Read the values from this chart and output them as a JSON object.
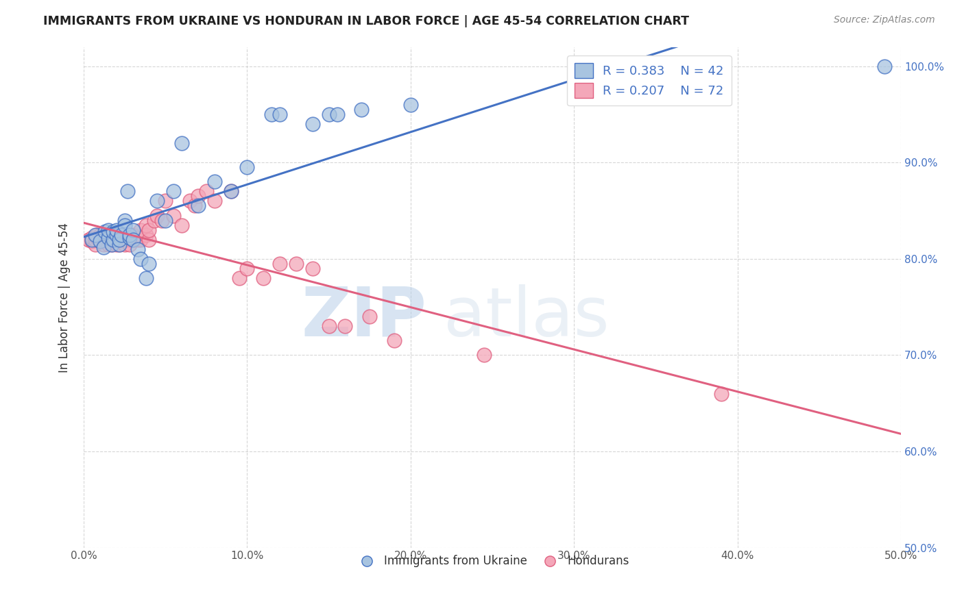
{
  "title": "IMMIGRANTS FROM UKRAINE VS HONDURAN IN LABOR FORCE | AGE 45-54 CORRELATION CHART",
  "source": "Source: ZipAtlas.com",
  "ylabel": "In Labor Force | Age 45-54",
  "xlim": [
    0.0,
    0.5
  ],
  "ylim": [
    0.5,
    1.02
  ],
  "xticks": [
    0.0,
    0.1,
    0.2,
    0.3,
    0.4,
    0.5
  ],
  "xticklabels": [
    "0.0%",
    "10.0%",
    "20.0%",
    "30.0%",
    "40.0%",
    "50.0%"
  ],
  "yticks": [
    0.5,
    0.6,
    0.7,
    0.8,
    0.9,
    1.0
  ],
  "yticklabels": [
    "50.0%",
    "60.0%",
    "70.0%",
    "80.0%",
    "90.0%",
    "100.0%"
  ],
  "blue_R": 0.383,
  "blue_N": 42,
  "pink_R": 0.207,
  "pink_N": 72,
  "blue_color": "#a8c4e0",
  "pink_color": "#f4a7b9",
  "blue_line_color": "#4472c4",
  "pink_line_color": "#e06080",
  "legend_text_color": "#4472c4",
  "watermark_zip": "ZIP",
  "watermark_atlas": "atlas",
  "blue_x": [
    0.005,
    0.007,
    0.01,
    0.012,
    0.013,
    0.015,
    0.015,
    0.017,
    0.018,
    0.018,
    0.02,
    0.02,
    0.022,
    0.022,
    0.023,
    0.025,
    0.025,
    0.027,
    0.028,
    0.028,
    0.03,
    0.03,
    0.033,
    0.035,
    0.038,
    0.04,
    0.045,
    0.05,
    0.055,
    0.06,
    0.07,
    0.08,
    0.09,
    0.1,
    0.115,
    0.12,
    0.14,
    0.15,
    0.155,
    0.17,
    0.2,
    0.49
  ],
  "blue_y": [
    0.82,
    0.825,
    0.818,
    0.812,
    0.828,
    0.822,
    0.83,
    0.815,
    0.82,
    0.828,
    0.825,
    0.83,
    0.815,
    0.82,
    0.825,
    0.84,
    0.835,
    0.87,
    0.822,
    0.825,
    0.83,
    0.82,
    0.81,
    0.8,
    0.78,
    0.795,
    0.86,
    0.84,
    0.87,
    0.92,
    0.855,
    0.88,
    0.87,
    0.895,
    0.95,
    0.95,
    0.94,
    0.95,
    0.95,
    0.955,
    0.96,
    1.0
  ],
  "pink_x": [
    0.003,
    0.005,
    0.005,
    0.007,
    0.007,
    0.008,
    0.008,
    0.01,
    0.01,
    0.01,
    0.012,
    0.012,
    0.013,
    0.013,
    0.015,
    0.015,
    0.015,
    0.015,
    0.017,
    0.017,
    0.018,
    0.018,
    0.018,
    0.02,
    0.02,
    0.02,
    0.022,
    0.022,
    0.022,
    0.022,
    0.023,
    0.023,
    0.025,
    0.025,
    0.025,
    0.028,
    0.028,
    0.028,
    0.03,
    0.03,
    0.033,
    0.033,
    0.035,
    0.035,
    0.038,
    0.038,
    0.04,
    0.04,
    0.043,
    0.045,
    0.048,
    0.05,
    0.055,
    0.06,
    0.065,
    0.068,
    0.07,
    0.075,
    0.08,
    0.09,
    0.095,
    0.1,
    0.11,
    0.12,
    0.13,
    0.14,
    0.15,
    0.16,
    0.175,
    0.19,
    0.245,
    0.39
  ],
  "pink_y": [
    0.82,
    0.818,
    0.822,
    0.815,
    0.82,
    0.822,
    0.825,
    0.818,
    0.822,
    0.825,
    0.815,
    0.82,
    0.818,
    0.822,
    0.815,
    0.82,
    0.822,
    0.825,
    0.815,
    0.82,
    0.818,
    0.822,
    0.825,
    0.815,
    0.82,
    0.822,
    0.815,
    0.82,
    0.822,
    0.825,
    0.818,
    0.822,
    0.815,
    0.82,
    0.822,
    0.82,
    0.822,
    0.815,
    0.82,
    0.825,
    0.82,
    0.822,
    0.82,
    0.83,
    0.825,
    0.835,
    0.82,
    0.83,
    0.84,
    0.845,
    0.84,
    0.86,
    0.845,
    0.835,
    0.86,
    0.855,
    0.865,
    0.87,
    0.86,
    0.87,
    0.78,
    0.79,
    0.78,
    0.795,
    0.795,
    0.79,
    0.73,
    0.73,
    0.74,
    0.715,
    0.7,
    0.66
  ]
}
